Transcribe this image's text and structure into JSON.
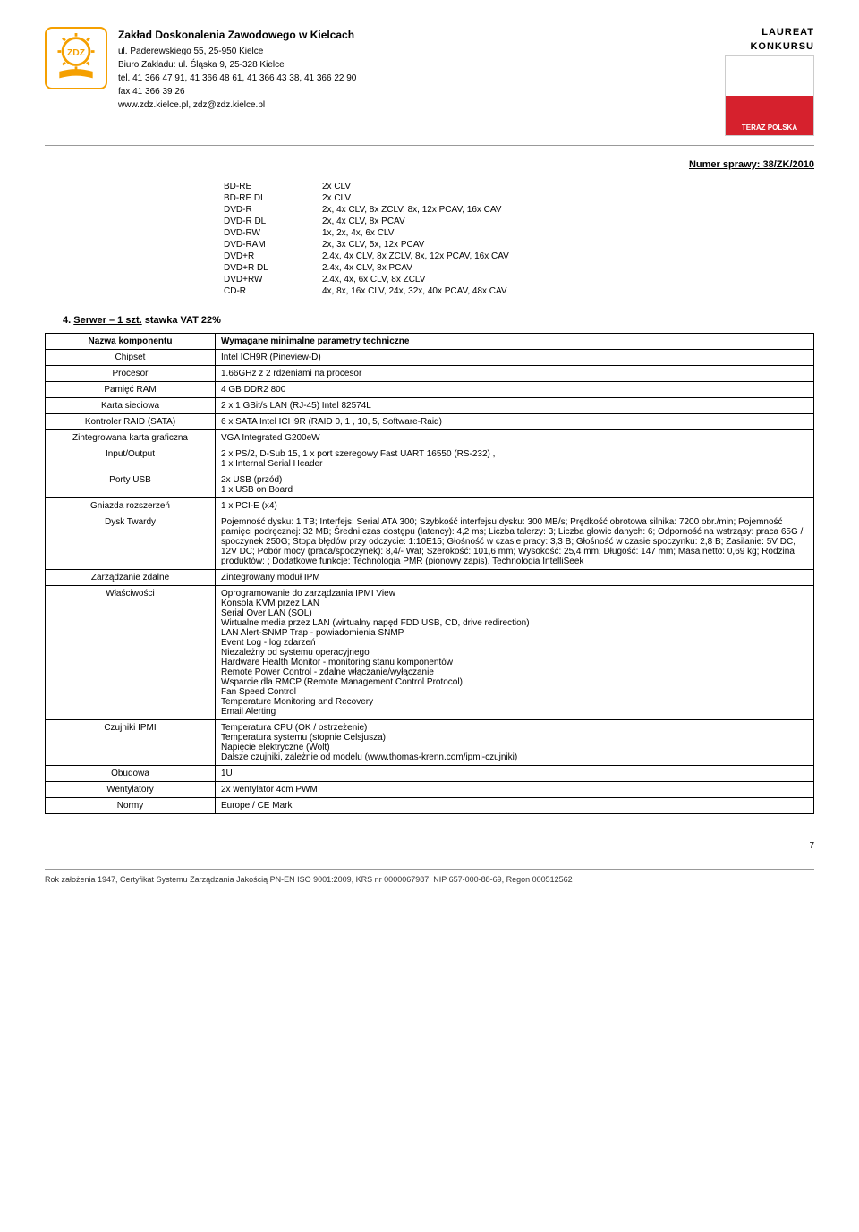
{
  "header": {
    "org_name": "Zakład Doskonalenia Zawodowego w Kielcach",
    "addr1": "ul. Paderewskiego 55, 25-950 Kielce",
    "addr2": "Biuro Zakładu: ul. Śląska 9, 25-328 Kielce",
    "tel": "tel. 41 366 47 91, 41 366 48 61, 41 366 43 38, 41 366 22 90",
    "fax": "fax 41 366 39 26",
    "web": "www.zdz.kielce.pl, zdz@zdz.kielce.pl",
    "laureat": "LAUREAT",
    "konkursu": "KONKURSU",
    "flag_text": "TERAZ POLSKA"
  },
  "case_number": "Numer sprawy: 38/ZK/2010",
  "drives": [
    {
      "k": "BD-RE",
      "v": "2x CLV"
    },
    {
      "k": "BD-RE DL",
      "v": "2x CLV"
    },
    {
      "k": "DVD-R",
      "v": "2x, 4x CLV, 8x ZCLV, 8x, 12x PCAV, 16x CAV"
    },
    {
      "k": "DVD-R DL",
      "v": "2x, 4x CLV, 8x PCAV"
    },
    {
      "k": "DVD-RW",
      "v": "1x, 2x, 4x, 6x CLV"
    },
    {
      "k": "DVD-RAM",
      "v": "2x, 3x CLV, 5x, 12x PCAV"
    },
    {
      "k": "DVD+R",
      "v": "2.4x, 4x CLV, 8x ZCLV, 8x, 12x PCAV, 16x CAV"
    },
    {
      "k": "DVD+R DL",
      "v": "2.4x, 4x CLV, 8x PCAV"
    },
    {
      "k": "DVD+RW",
      "v": "2.4x, 4x, 6x CLV, 8x ZCLV"
    },
    {
      "k": "CD-R",
      "v": "4x, 8x, 16x CLV, 24x, 32x, 40x PCAV, 48x CAV"
    }
  ],
  "section": {
    "num": "4.",
    "title": "Serwer – 1 szt.",
    "vat": " stawka VAT 22%"
  },
  "spec": {
    "header_left": "Nazwa komponentu",
    "header_right": "Wymagane minimalne parametry techniczne",
    "rows": [
      {
        "k": "Chipset",
        "v": "Intel ICH9R (Pineview-D)"
      },
      {
        "k": "Procesor",
        "v": "1.66GHz z 2 rdzeniami na procesor"
      },
      {
        "k": "Pamięć RAM",
        "v": "4 GB DDR2 800"
      },
      {
        "k": "Karta sieciowa",
        "v": "2 x 1 GBit/s LAN (RJ-45) Intel 82574L"
      },
      {
        "k": "Kontroler RAID (SATA)",
        "v": "6 x SATA Intel ICH9R (RAID 0, 1 , 10, 5, Software-Raid)"
      },
      {
        "k": "Zintegrowana karta graficzna",
        "v": "VGA Integrated  G200eW"
      },
      {
        "k": "Input/Output",
        "v": "2 x PS/2, D-Sub 15, 1 x port szeregowy Fast UART 16550 (RS-232) ,\n1 x Internal Serial Header"
      },
      {
        "k": "Porty USB",
        "v": "2x USB (przód)\n1 x USB on Board"
      },
      {
        "k": "Gniazda rozszerzeń",
        "v": "1 x PCI-E (x4)"
      },
      {
        "k": "Dysk Twardy",
        "v": "Pojemność dysku: 1 TB; Interfejs: Serial ATA 300; Szybkość interfejsu dysku: 300 MB/s; Prędkość obrotowa silnika: 7200 obr./min; Pojemność pamięci podręcznej: 32 MB; Średni czas dostępu (latency): 4,2 ms; Liczba talerzy: 3; Liczba głowic danych: 6; Odporność na wstrząsy: praca 65G / spoczynek 250G; Stopa błędów przy odczycie: 1:10E15; Głośność w czasie pracy: 3,3 B; Głośność w czasie spoczynku: 2,8 B; Zasilanie: 5V DC, 12V DC; Pobór mocy (praca/spoczynek): 8,4/- Wat; Szerokość: 101,6 mm; Wysokość: 25,4 mm; Długość: 147 mm; Masa netto: 0,69 kg; Rodzina produktów: ; Dodatkowe funkcje: Technologia PMR (pionowy zapis), Technologia IntelliSeek"
      },
      {
        "k": "Zarządzanie zdalne",
        "v": "Zintegrowany moduł IPM"
      },
      {
        "k": "Właściwości",
        "v": "Oprogramowanie do zarządzania IPMI View\nKonsola KVM przez LAN\nSerial Over LAN (SOL)\nWirtualne media przez LAN (wirtualny napęd FDD USB, CD, drive redirection)\nLAN Alert-SNMP Trap - powiadomienia SNMP\nEvent Log - log zdarzeń\nNiezależny od systemu operacyjnego\nHardware Health Monitor - monitoring stanu komponentów\nRemote Power Control - zdalne włączanie/wyłączanie\nWsparcie dla RMCP (Remote Management Control Protocol)\nFan Speed Control\nTemperature Monitoring and Recovery\nEmail Alerting"
      },
      {
        "k": "Czujniki IPMI",
        "v": "Temperatura CPU (OK / ostrzeżenie)\nTemperatura systemu (stopnie Celsjusza)\nNapięcie elektryczne (Wolt)\nDalsze czujniki, zależnie od modelu (www.thomas-krenn.com/ipmi-czujniki)"
      },
      {
        "k": "Obudowa",
        "v": "1U"
      },
      {
        "k": "Wentylatory",
        "v": "2x wentylator 4cm PWM"
      },
      {
        "k": "Normy",
        "v": "Europe / CE Mark"
      }
    ]
  },
  "page_number": "7",
  "footer": "Rok założenia 1947, Certyfikat Systemu Zarządzania Jakością PN-EN ISO 9001:2009, KRS nr 0000067987, NIP 657-000-88-69, Regon 000512562"
}
